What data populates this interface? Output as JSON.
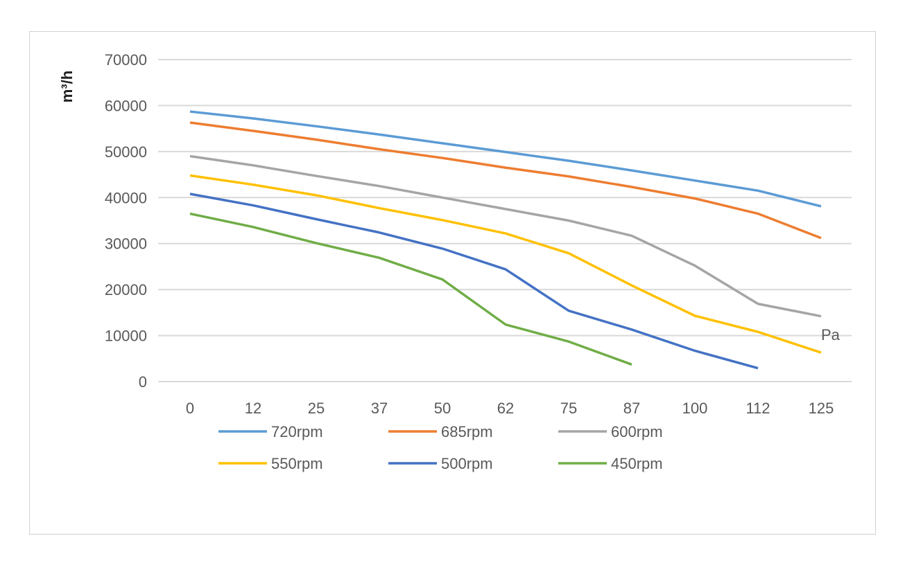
{
  "chart_data": {
    "type": "line",
    "title": "",
    "ylabel": "m³/h",
    "xlabel": "Pa",
    "ylim": [
      0,
      70000
    ],
    "yticks": [
      0,
      10000,
      20000,
      30000,
      40000,
      50000,
      60000,
      70000
    ],
    "grid": true,
    "legend_position": "bottom",
    "categories": [
      "0",
      "12",
      "25",
      "37",
      "50",
      "62",
      "75",
      "87",
      "100",
      "112",
      "125"
    ],
    "series": [
      {
        "name": "720rpm",
        "color": "#5b9bd5",
        "values": [
          58700,
          57200,
          55500,
          53700,
          51800,
          49900,
          48000,
          45900,
          43700,
          41500,
          38100
        ]
      },
      {
        "name": "685rpm",
        "color": "#ed7d31",
        "values": [
          56300,
          54500,
          52600,
          50500,
          48600,
          46500,
          44600,
          42300,
          39800,
          36500,
          31200
        ]
      },
      {
        "name": "600rpm",
        "color": "#a5a5a5",
        "values": [
          49000,
          47000,
          44700,
          42500,
          40000,
          37500,
          35000,
          31700,
          25200,
          16900,
          14200
        ]
      },
      {
        "name": "550rpm",
        "color": "#ffc000",
        "values": [
          44800,
          42800,
          40500,
          37700,
          35100,
          32200,
          27900,
          20900,
          14300,
          10800,
          6300
        ]
      },
      {
        "name": "500rpm",
        "color": "#4472c4",
        "values": [
          40800,
          38300,
          35300,
          32400,
          28900,
          24400,
          15400,
          11300,
          6700,
          2900,
          null
        ]
      },
      {
        "name": "450rpm",
        "color": "#70ad47",
        "values": [
          36500,
          33600,
          30100,
          26900,
          22200,
          12400,
          8700,
          3700,
          null,
          null,
          null
        ]
      }
    ]
  }
}
